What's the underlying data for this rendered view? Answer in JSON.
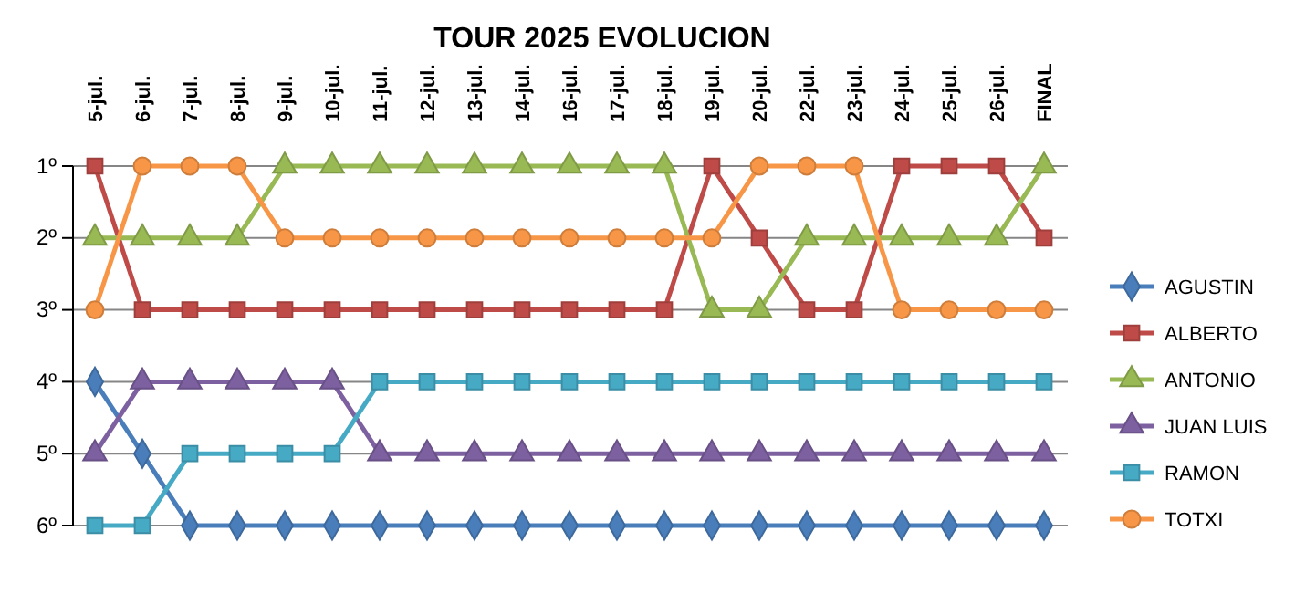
{
  "chart_data": {
    "type": "line",
    "title": "TOUR 2025 EVOLUCION",
    "categories": [
      "5-jul.",
      "6-jul.",
      "7-jul.",
      "8-jul.",
      "9-jul.",
      "10-jul.",
      "11-jul.",
      "12-jul.",
      "13-jul.",
      "14-jul.",
      "16-jul.",
      "17-jul.",
      "18-jul.",
      "19-jul.",
      "20-jul.",
      "22-jul.",
      "23-jul.",
      "24-jul.",
      "25-jul.",
      "26-jul.",
      "FINAL"
    ],
    "ylim": [
      6,
      1
    ],
    "yticks": [
      {
        "value": 1,
        "label": "1º"
      },
      {
        "value": 2,
        "label": "2º"
      },
      {
        "value": 3,
        "label": "3º"
      },
      {
        "value": 4,
        "label": "4º"
      },
      {
        "value": 5,
        "label": "5º"
      },
      {
        "value": 6,
        "label": "6º"
      }
    ],
    "grid": "y",
    "legend": "right",
    "series": [
      {
        "name": "AGUSTIN",
        "color": "#4a7ebb",
        "marker": "diamond",
        "values": [
          4,
          5,
          6,
          6,
          6,
          6,
          6,
          6,
          6,
          6,
          6,
          6,
          6,
          6,
          6,
          6,
          6,
          6,
          6,
          6,
          6
        ]
      },
      {
        "name": "ALBERTO",
        "color": "#be4b48",
        "marker": "square",
        "values": [
          1,
          3,
          3,
          3,
          3,
          3,
          3,
          3,
          3,
          3,
          3,
          3,
          3,
          1,
          2,
          3,
          3,
          1,
          1,
          1,
          2
        ]
      },
      {
        "name": "ANTONIO",
        "color": "#98b954",
        "marker": "triangle",
        "values": [
          2,
          2,
          2,
          2,
          1,
          1,
          1,
          1,
          1,
          1,
          1,
          1,
          1,
          3,
          3,
          2,
          2,
          2,
          2,
          2,
          1
        ]
      },
      {
        "name": "JUAN LUIS",
        "color": "#7d60a0",
        "marker": "triangle",
        "values": [
          5,
          4,
          4,
          4,
          4,
          4,
          5,
          5,
          5,
          5,
          5,
          5,
          5,
          5,
          5,
          5,
          5,
          5,
          5,
          5,
          5
        ]
      },
      {
        "name": "RAMON",
        "color": "#46aac5",
        "marker": "square",
        "values": [
          6,
          6,
          5,
          5,
          5,
          5,
          4,
          4,
          4,
          4,
          4,
          4,
          4,
          4,
          4,
          4,
          4,
          4,
          4,
          4,
          4
        ]
      },
      {
        "name": "TOTXI",
        "color": "#f79646",
        "marker": "circle",
        "values": [
          3,
          1,
          1,
          1,
          2,
          2,
          2,
          2,
          2,
          2,
          2,
          2,
          2,
          2,
          1,
          1,
          1,
          3,
          3,
          3,
          3
        ]
      }
    ]
  }
}
